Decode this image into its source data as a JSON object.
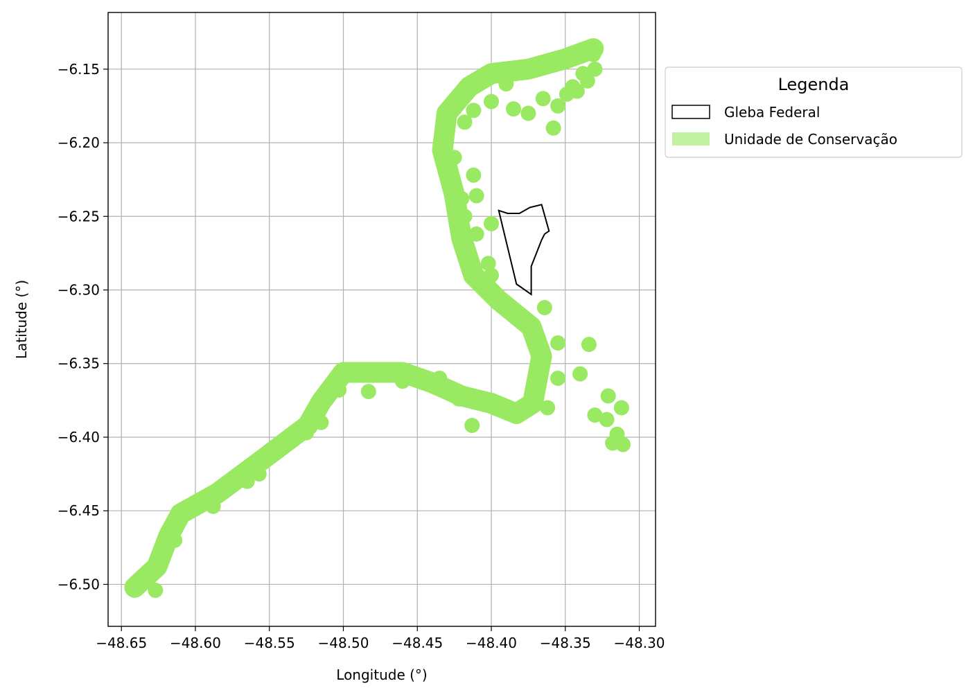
{
  "chart_data": {
    "type": "map",
    "xlabel": "Longitude (°)",
    "ylabel": "Latitude (°)",
    "xlim": [
      -48.659,
      -48.289
    ],
    "ylim": [
      -6.5285,
      -6.1115
    ],
    "grid": true,
    "x_ticks": [
      -48.65,
      -48.6,
      -48.55,
      -48.5,
      -48.45,
      -48.4,
      -48.35,
      -48.3
    ],
    "x_tick_labels": [
      "−48.65",
      "−48.60",
      "−48.55",
      "−48.50",
      "−48.45",
      "−48.40",
      "−48.35",
      "−48.30"
    ],
    "y_ticks": [
      -6.15,
      -6.2,
      -6.25,
      -6.3,
      -6.35,
      -6.4,
      -6.45,
      -6.5
    ],
    "y_tick_labels": [
      "−6.15",
      "−6.20",
      "−6.25",
      "−6.30",
      "−6.35",
      "−6.40",
      "−6.45",
      "−6.50"
    ],
    "legend": {
      "title": "Legenda",
      "placement": "outside-upper-right",
      "items": [
        {
          "label": "Gleba Federal",
          "style": "outline",
          "color": "#000000"
        },
        {
          "label": "Unidade de Conservação",
          "style": "fill",
          "color": "#9ae963"
        }
      ]
    },
    "layers": [
      {
        "name": "Unidade de Conservação",
        "kind": "buffered-path",
        "color": "#9ae963",
        "points": [
          [
            -48.641,
            -6.502
          ],
          [
            -48.626,
            -6.488
          ],
          [
            -48.618,
            -6.467
          ],
          [
            -48.61,
            -6.452
          ],
          [
            -48.585,
            -6.438
          ],
          [
            -48.557,
            -6.417
          ],
          [
            -48.524,
            -6.392
          ],
          [
            -48.515,
            -6.376
          ],
          [
            -48.5,
            -6.356
          ],
          [
            -48.48,
            -6.356
          ],
          [
            -48.46,
            -6.356
          ],
          [
            -48.44,
            -6.363
          ],
          [
            -48.42,
            -6.372
          ],
          [
            -48.4,
            -6.377
          ],
          [
            -48.383,
            -6.384
          ],
          [
            -48.372,
            -6.377
          ],
          [
            -48.366,
            -6.345
          ],
          [
            -48.373,
            -6.325
          ],
          [
            -48.395,
            -6.307
          ],
          [
            -48.412,
            -6.29
          ],
          [
            -48.42,
            -6.265
          ],
          [
            -48.425,
            -6.235
          ],
          [
            -48.433,
            -6.205
          ],
          [
            -48.43,
            -6.18
          ],
          [
            -48.415,
            -6.162
          ],
          [
            -48.4,
            -6.153
          ],
          [
            -48.375,
            -6.15
          ],
          [
            -48.35,
            -6.143
          ],
          [
            -48.331,
            -6.136
          ]
        ],
        "blobs": [
          [
            -48.627,
            -6.504
          ],
          [
            -48.614,
            -6.47
          ],
          [
            -48.588,
            -6.447
          ],
          [
            -48.565,
            -6.43
          ],
          [
            -48.557,
            -6.425
          ],
          [
            -48.525,
            -6.397
          ],
          [
            -48.515,
            -6.39
          ],
          [
            -48.503,
            -6.368
          ],
          [
            -48.483,
            -6.369
          ],
          [
            -48.46,
            -6.362
          ],
          [
            -48.445,
            -6.362
          ],
          [
            -48.435,
            -6.36
          ],
          [
            -48.422,
            -6.374
          ],
          [
            -48.413,
            -6.392
          ],
          [
            -48.385,
            -6.383
          ],
          [
            -48.362,
            -6.38
          ],
          [
            -48.355,
            -6.36
          ],
          [
            -48.34,
            -6.357
          ],
          [
            -48.334,
            -6.337
          ],
          [
            -48.355,
            -6.336
          ],
          [
            -48.364,
            -6.312
          ],
          [
            -48.33,
            -6.385
          ],
          [
            -48.322,
            -6.388
          ],
          [
            -48.312,
            -6.38
          ],
          [
            -48.321,
            -6.372
          ],
          [
            -48.315,
            -6.398
          ],
          [
            -48.318,
            -6.404
          ],
          [
            -48.311,
            -6.405
          ],
          [
            -48.4,
            -6.29
          ],
          [
            -48.402,
            -6.282
          ],
          [
            -48.41,
            -6.262
          ],
          [
            -48.4,
            -6.255
          ],
          [
            -48.418,
            -6.25
          ],
          [
            -48.42,
            -6.238
          ],
          [
            -48.41,
            -6.236
          ],
          [
            -48.412,
            -6.222
          ],
          [
            -48.425,
            -6.21
          ],
          [
            -48.418,
            -6.186
          ],
          [
            -48.412,
            -6.178
          ],
          [
            -48.4,
            -6.172
          ],
          [
            -48.39,
            -6.16
          ],
          [
            -48.385,
            -6.177
          ],
          [
            -48.375,
            -6.18
          ],
          [
            -48.365,
            -6.17
          ],
          [
            -48.358,
            -6.19
          ],
          [
            -48.355,
            -6.175
          ],
          [
            -48.345,
            -6.162
          ],
          [
            -48.342,
            -6.165
          ],
          [
            -48.335,
            -6.158
          ],
          [
            -48.33,
            -6.15
          ],
          [
            -48.331,
            -6.14
          ],
          [
            -48.338,
            -6.153
          ],
          [
            -48.349,
            -6.167
          ]
        ]
      },
      {
        "name": "Gleba Federal",
        "kind": "polygon-outline",
        "color": "#000000",
        "points": [
          [
            -48.395,
            -6.246
          ],
          [
            -48.389,
            -6.248
          ],
          [
            -48.381,
            -6.248
          ],
          [
            -48.374,
            -6.244
          ],
          [
            -48.366,
            -6.242
          ],
          [
            -48.361,
            -6.26
          ],
          [
            -48.364,
            -6.262
          ],
          [
            -48.366,
            -6.266
          ],
          [
            -48.373,
            -6.284
          ],
          [
            -48.373,
            -6.303
          ],
          [
            -48.383,
            -6.296
          ],
          [
            -48.395,
            -6.246
          ]
        ]
      }
    ]
  }
}
